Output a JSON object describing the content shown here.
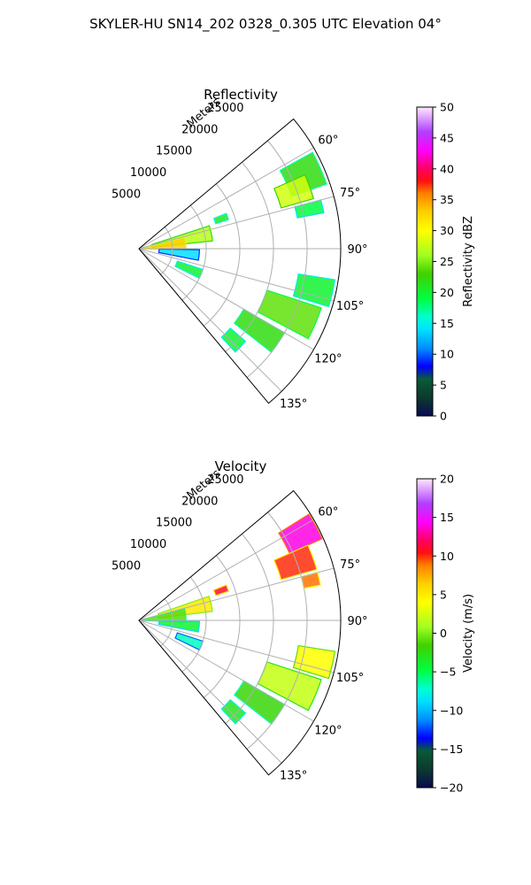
{
  "figure_title": "SKYLER-HU  SN14_202  0328_0.305 UTC Elevation 04°",
  "chart_data": [
    {
      "type": "heatmap",
      "projection": "polar-sector",
      "title": "Reflectivity",
      "radial_axis_label": "Meters",
      "radial_ticks": [
        "5000",
        "10000",
        "15000",
        "20000",
        "25000"
      ],
      "radial_tick_values": [
        5000,
        10000,
        15000,
        20000,
        25000
      ],
      "radial_max": 30000,
      "angle_range_deg": [
        50,
        140
      ],
      "angle_ticks": [
        "60°",
        "75°",
        "90°",
        "105°",
        "120°",
        "135°"
      ],
      "angle_tick_values": [
        60,
        75,
        90,
        105,
        120,
        135
      ],
      "grid": true,
      "colorbar": {
        "label": "Reflectivity dBZ",
        "min": 0,
        "max": 50,
        "ticks": [
          "0",
          "5",
          "10",
          "15",
          "20",
          "25",
          "30",
          "35",
          "40",
          "45",
          "50"
        ],
        "tick_values": [
          0,
          5,
          10,
          15,
          20,
          25,
          30,
          35,
          40,
          45,
          50
        ]
      },
      "echo_regions": [
        {
          "az": 66,
          "r0": 24000,
          "r1": 29500,
          "spread": 5,
          "value": 22
        },
        {
          "az": 70,
          "r0": 22000,
          "r1": 27000,
          "spread": 4,
          "value": 28
        },
        {
          "az": 77,
          "r0": 24000,
          "r1": 28000,
          "spread": 2,
          "value": 19
        },
        {
          "az": 70,
          "r0": 12000,
          "r1": 14000,
          "spread": 2,
          "value": 21
        },
        {
          "az": 78,
          "r0": 2000,
          "r1": 11000,
          "spread": 6,
          "value": 27
        },
        {
          "az": 84,
          "r0": 0,
          "r1": 7000,
          "spread": 8,
          "value": 33
        },
        {
          "az": 96,
          "r0": 3000,
          "r1": 9000,
          "spread": 5,
          "value": 14
        },
        {
          "az": 112,
          "r0": 6000,
          "r1": 10000,
          "spread": 4,
          "value": 20
        },
        {
          "az": 103,
          "r0": 24000,
          "r1": 29500,
          "spread": 4,
          "value": 20
        },
        {
          "az": 113,
          "r0": 20000,
          "r1": 28500,
          "spread": 5,
          "value": 24
        },
        {
          "az": 124,
          "r0": 18000,
          "r1": 25000,
          "spread": 4,
          "value": 22
        },
        {
          "az": 134,
          "r0": 18000,
          "r1": 21000,
          "spread": 3,
          "value": 20
        }
      ]
    },
    {
      "type": "heatmap",
      "projection": "polar-sector",
      "title": "Velocity",
      "radial_axis_label": "Meters",
      "radial_ticks": [
        "5000",
        "10000",
        "15000",
        "20000",
        "25000"
      ],
      "radial_tick_values": [
        5000,
        10000,
        15000,
        20000,
        25000
      ],
      "radial_max": 30000,
      "angle_range_deg": [
        50,
        140
      ],
      "angle_ticks": [
        "60°",
        "75°",
        "90°",
        "105°",
        "120°",
        "135°"
      ],
      "angle_tick_values": [
        60,
        75,
        90,
        105,
        120,
        135
      ],
      "grid": true,
      "colorbar": {
        "label": "Velocity (m/s)",
        "min": -20,
        "max": 20,
        "ticks": [
          "−20",
          "−15",
          "−10",
          "−5",
          "0",
          "5",
          "10",
          "15",
          "20"
        ],
        "tick_values": [
          -20,
          -15,
          -10,
          -5,
          0,
          5,
          10,
          15,
          20
        ]
      },
      "echo_regions": [
        {
          "az": 62,
          "r0": 24500,
          "r1": 29800,
          "spread": 4,
          "value": 14
        },
        {
          "az": 70,
          "r0": 22000,
          "r1": 27500,
          "spread": 4,
          "value": 10
        },
        {
          "az": 77,
          "r0": 25000,
          "r1": 27500,
          "spread": 2,
          "value": 9
        },
        {
          "az": 70,
          "r0": 12000,
          "r1": 14000,
          "spread": 2,
          "value": 11
        },
        {
          "az": 77,
          "r0": 3000,
          "r1": 11000,
          "spread": 6,
          "value": 5
        },
        {
          "az": 84,
          "r0": 0,
          "r1": 7000,
          "spread": 8,
          "value": -1
        },
        {
          "az": 96,
          "r0": 3000,
          "r1": 9000,
          "spread": 5,
          "value": -4
        },
        {
          "az": 112,
          "r0": 6000,
          "r1": 10000,
          "spread": 4,
          "value": -7
        },
        {
          "az": 103,
          "r0": 24000,
          "r1": 29500,
          "spread": 4,
          "value": 4
        },
        {
          "az": 113,
          "r0": 20000,
          "r1": 28500,
          "spread": 5,
          "value": 2
        },
        {
          "az": 124,
          "r0": 18000,
          "r1": 25000,
          "spread": 4,
          "value": -2
        },
        {
          "az": 134,
          "r0": 18000,
          "r1": 21000,
          "spread": 3,
          "value": -3
        }
      ]
    }
  ]
}
